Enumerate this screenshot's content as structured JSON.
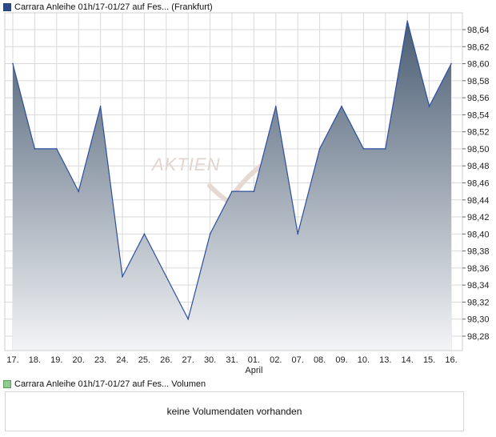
{
  "legend_price": "Carrara Anleihe 01h/17-01/27 auf Fes... (Frankfurt)",
  "legend_volume": "Carrara Anleihe 01h/17-01/27 auf Fes... Volumen",
  "volume_message": "keine Volumendaten vorhanden",
  "watermark": "AKTIEN",
  "colors": {
    "line": "#2d4fa0",
    "fill_top": "#4a5d73",
    "fill_bottom": "#f3f4f6",
    "grid": "#d9d9d9"
  },
  "chart_data": {
    "type": "area",
    "title": "",
    "xlabel": "",
    "ylabel": "",
    "x": [
      "17.",
      "18.",
      "19.",
      "20.",
      "23.",
      "24.",
      "25.",
      "26.",
      "27.",
      "30.",
      "31.",
      "01.",
      "02.",
      "07.",
      "08.",
      "09.",
      "10.",
      "13.",
      "14.",
      "15.",
      "16."
    ],
    "month_label": {
      "text": "April",
      "at": "01."
    },
    "series": [
      {
        "values": [
          98.6,
          98.5,
          98.5,
          98.45,
          98.55,
          98.35,
          98.4,
          98.35,
          98.3,
          98.4,
          98.45,
          98.45,
          98.55,
          98.4,
          98.5,
          98.55,
          98.5,
          98.5,
          98.65,
          98.55,
          98.6
        ]
      }
    ],
    "ylim": [
      98.26,
      98.66
    ],
    "yticks": [
      "98,28",
      "98,30",
      "98,32",
      "98,34",
      "98,36",
      "98,38",
      "98,40",
      "98,42",
      "98,44",
      "98,46",
      "98,48",
      "98,50",
      "98,52",
      "98,54",
      "98,56",
      "98,58",
      "98,60",
      "98,62",
      "98,64"
    ],
    "grid": true,
    "y_axis_side": "right"
  }
}
